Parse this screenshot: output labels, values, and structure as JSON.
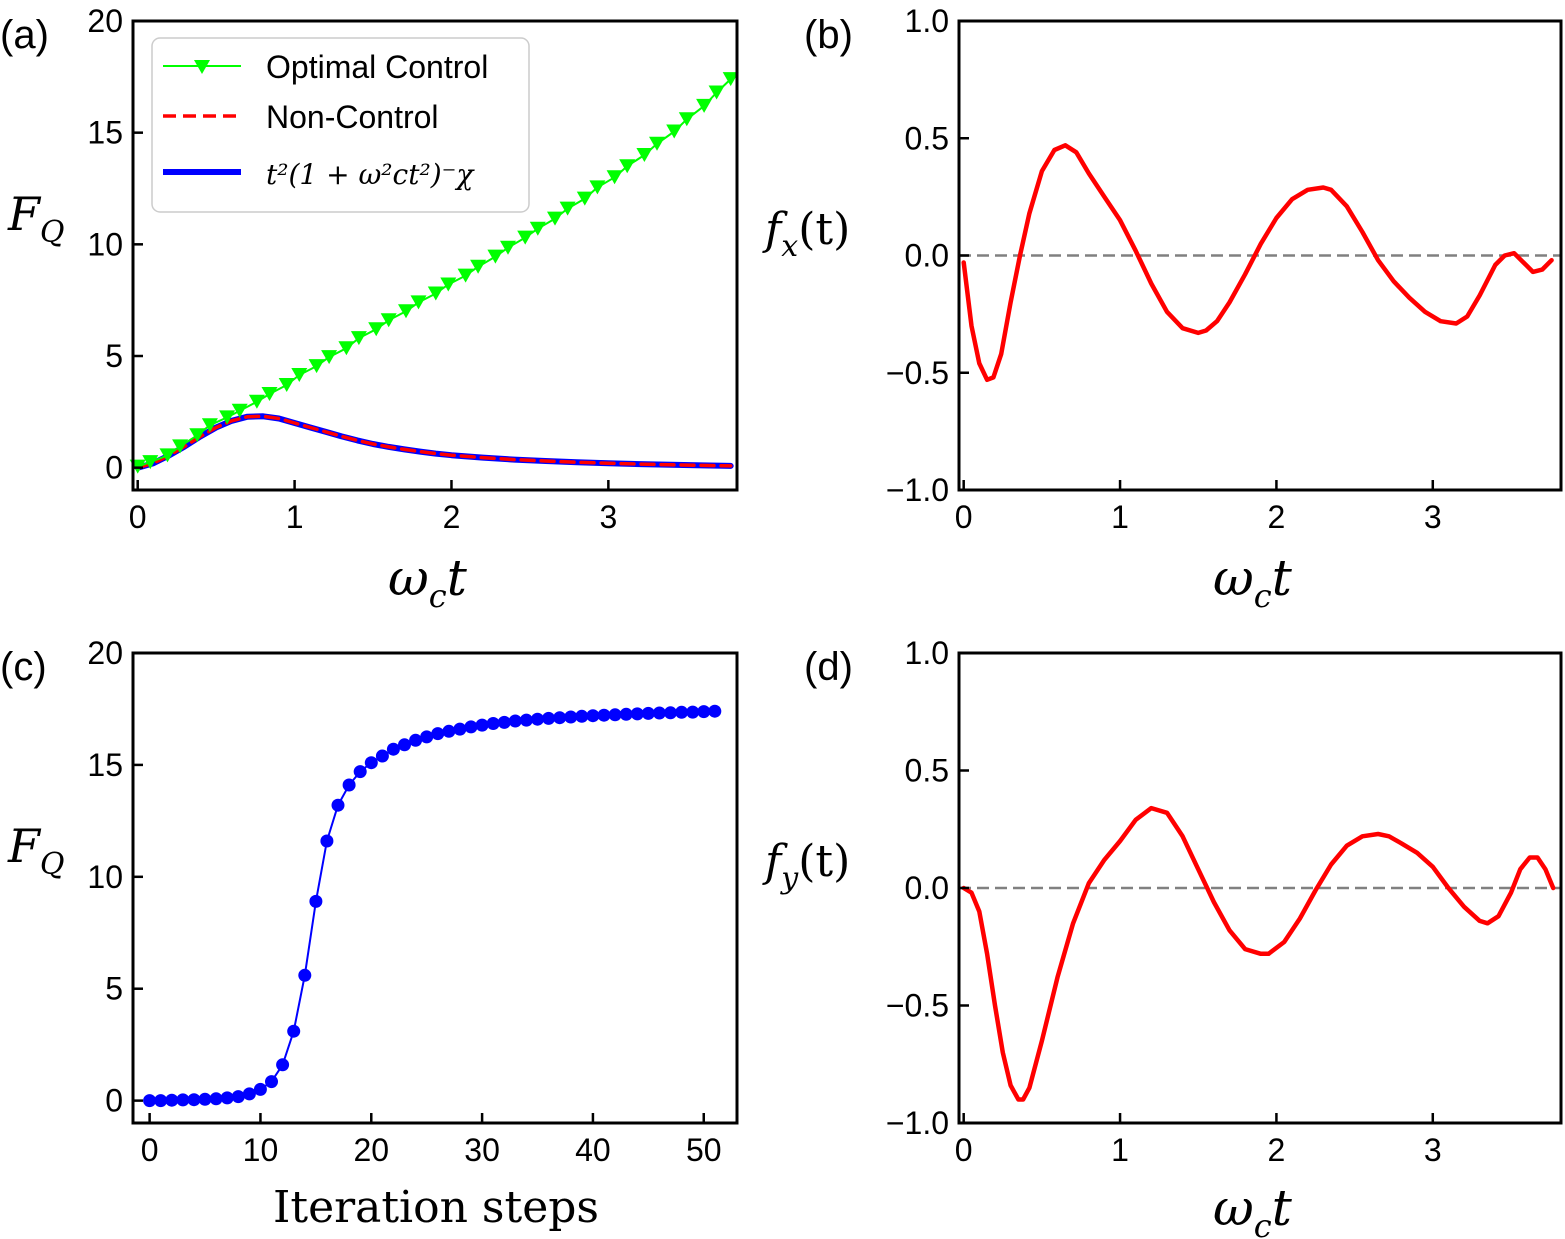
{
  "chart_data": [
    {
      "panel_label": "(a)",
      "type": "line",
      "xlabel_base": "ω",
      "xlabel_sub": "c",
      "xlabel_tail": "t",
      "ylabel_base": "F",
      "ylabel_sub": "Q",
      "xlim": [
        -0.03,
        3.82
      ],
      "ylim": [
        -1,
        20
      ],
      "xticks": [
        0,
        1,
        2,
        3
      ],
      "yticks": [
        0,
        5,
        10,
        15,
        20
      ],
      "grid": false,
      "legend": "top-left",
      "legend_entries": {
        "optimal": "Optimal Control",
        "noncontrol": "Non-Control",
        "formula": "t²(1 + ω²ct²)⁻χ"
      },
      "series": [
        {
          "name": "Optimal Control",
          "color": "#00ff00",
          "marker": "triangle-down",
          "x": [
            0.0,
            0.08,
            0.19,
            0.27,
            0.38,
            0.46,
            0.57,
            0.65,
            0.76,
            0.84,
            0.95,
            1.03,
            1.14,
            1.22,
            1.33,
            1.41,
            1.52,
            1.6,
            1.71,
            1.79,
            1.9,
            1.98,
            2.09,
            2.17,
            2.28,
            2.36,
            2.47,
            2.55,
            2.66,
            2.74,
            2.85,
            2.93,
            3.04,
            3.12,
            3.23,
            3.31,
            3.42,
            3.5,
            3.61,
            3.69,
            3.78
          ],
          "values": [
            0.05,
            0.25,
            0.55,
            0.95,
            1.45,
            1.9,
            2.25,
            2.55,
            2.95,
            3.3,
            3.7,
            4.15,
            4.55,
            4.95,
            5.35,
            5.8,
            6.2,
            6.6,
            7.0,
            7.4,
            7.8,
            8.2,
            8.6,
            9.0,
            9.45,
            9.85,
            10.3,
            10.7,
            11.15,
            11.6,
            12.05,
            12.55,
            13.0,
            13.5,
            14.0,
            14.5,
            15.05,
            15.6,
            16.2,
            16.8,
            17.4
          ]
        },
        {
          "name": "Non-Control",
          "color": "#ff0000",
          "style": "dashed",
          "x": [
            0.0,
            0.1,
            0.2,
            0.3,
            0.4,
            0.5,
            0.6,
            0.7,
            0.8,
            0.9,
            1.0,
            1.1,
            1.2,
            1.3,
            1.4,
            1.5,
            1.6,
            1.7,
            1.8,
            1.9,
            2.0,
            2.2,
            2.4,
            2.6,
            2.8,
            3.0,
            3.2,
            3.4,
            3.6,
            3.78
          ],
          "values": [
            0.0,
            0.2,
            0.55,
            0.95,
            1.4,
            1.8,
            2.1,
            2.28,
            2.3,
            2.2,
            2.0,
            1.8,
            1.6,
            1.4,
            1.22,
            1.06,
            0.93,
            0.82,
            0.72,
            0.63,
            0.56,
            0.45,
            0.36,
            0.3,
            0.24,
            0.2,
            0.16,
            0.13,
            0.1,
            0.08
          ]
        },
        {
          "name": "t²(1 + ω²ct²)⁻χ",
          "color": "#0000ff",
          "style": "solid",
          "x": [
            0.0,
            0.1,
            0.2,
            0.3,
            0.4,
            0.5,
            0.6,
            0.7,
            0.8,
            0.9,
            1.0,
            1.1,
            1.2,
            1.3,
            1.4,
            1.5,
            1.6,
            1.7,
            1.8,
            1.9,
            2.0,
            2.2,
            2.4,
            2.6,
            2.8,
            3.0,
            3.2,
            3.4,
            3.6,
            3.78
          ],
          "values": [
            0.0,
            0.2,
            0.55,
            0.95,
            1.4,
            1.8,
            2.1,
            2.28,
            2.3,
            2.2,
            2.0,
            1.8,
            1.6,
            1.4,
            1.22,
            1.06,
            0.93,
            0.82,
            0.72,
            0.63,
            0.56,
            0.45,
            0.36,
            0.3,
            0.24,
            0.2,
            0.16,
            0.13,
            0.1,
            0.08
          ]
        }
      ]
    },
    {
      "panel_label": "(b)",
      "type": "line",
      "xlabel_base": "ω",
      "xlabel_sub": "c",
      "xlabel_tail": "t",
      "ylabel_base": "f",
      "ylabel_sub": "x",
      "ylabel_tail": "(t)",
      "xlim": [
        -0.03,
        3.82
      ],
      "ylim": [
        -1.0,
        1.0
      ],
      "xticks": [
        0,
        1,
        2,
        3
      ],
      "yticks": [
        -1.0,
        -0.5,
        0.0,
        0.5,
        1.0
      ],
      "ytick_labels": [
        "−1.0",
        "−0.5",
        "0.0",
        "0.5",
        "1.0"
      ],
      "grid": false,
      "reference_line": 0.0,
      "series": [
        {
          "color": "#ff0000",
          "x": [
            0.0,
            0.05,
            0.1,
            0.15,
            0.19,
            0.24,
            0.3,
            0.36,
            0.42,
            0.5,
            0.58,
            0.65,
            0.72,
            0.8,
            0.9,
            1.0,
            1.1,
            1.2,
            1.3,
            1.4,
            1.5,
            1.55,
            1.62,
            1.7,
            1.8,
            1.9,
            2.0,
            2.1,
            2.2,
            2.3,
            2.35,
            2.45,
            2.55,
            2.65,
            2.75,
            2.85,
            2.95,
            3.05,
            3.15,
            3.22,
            3.3,
            3.4,
            3.46,
            3.52,
            3.58,
            3.64,
            3.7,
            3.76
          ],
          "values": [
            -0.03,
            -0.3,
            -0.46,
            -0.53,
            -0.52,
            -0.42,
            -0.2,
            0.0,
            0.18,
            0.36,
            0.45,
            0.47,
            0.44,
            0.35,
            0.25,
            0.15,
            0.02,
            -0.12,
            -0.24,
            -0.31,
            -0.33,
            -0.32,
            -0.28,
            -0.2,
            -0.08,
            0.05,
            0.16,
            0.24,
            0.28,
            0.29,
            0.28,
            0.21,
            0.1,
            -0.02,
            -0.11,
            -0.18,
            -0.24,
            -0.28,
            -0.29,
            -0.26,
            -0.17,
            -0.04,
            0.0,
            0.01,
            -0.03,
            -0.07,
            -0.06,
            -0.02
          ]
        }
      ]
    },
    {
      "panel_label": "(c)",
      "type": "line",
      "xlabel": "Iteration steps",
      "ylabel_base": "F",
      "ylabel_sub": "Q",
      "xlim": [
        -1.5,
        53
      ],
      "ylim": [
        -1,
        20
      ],
      "xticks": [
        0,
        10,
        20,
        30,
        40,
        50
      ],
      "yticks": [
        0,
        5,
        10,
        15,
        20
      ],
      "grid": false,
      "series": [
        {
          "color": "#0000ff",
          "marker": "circle",
          "x": [
            0,
            1,
            2,
            3,
            4,
            5,
            6,
            7,
            8,
            9,
            10,
            11,
            12,
            13,
            14,
            15,
            16,
            17,
            18,
            19,
            20,
            21,
            22,
            23,
            24,
            25,
            26,
            27,
            28,
            29,
            30,
            31,
            32,
            33,
            34,
            35,
            36,
            37,
            38,
            39,
            40,
            41,
            42,
            43,
            44,
            45,
            46,
            47,
            48,
            49,
            50,
            51
          ],
          "values": [
            0.0,
            0.0,
            0.02,
            0.03,
            0.04,
            0.06,
            0.08,
            0.12,
            0.18,
            0.3,
            0.5,
            0.85,
            1.6,
            3.1,
            5.6,
            8.9,
            11.6,
            13.2,
            14.1,
            14.7,
            15.1,
            15.4,
            15.7,
            15.9,
            16.1,
            16.25,
            16.4,
            16.5,
            16.6,
            16.7,
            16.78,
            16.85,
            16.9,
            16.96,
            17.0,
            17.04,
            17.08,
            17.11,
            17.14,
            17.17,
            17.2,
            17.22,
            17.24,
            17.26,
            17.28,
            17.3,
            17.32,
            17.33,
            17.35,
            17.36,
            17.38,
            17.4
          ]
        }
      ]
    },
    {
      "panel_label": "(d)",
      "type": "line",
      "xlabel_base": "ω",
      "xlabel_sub": "c",
      "xlabel_tail": "t",
      "ylabel_base": "f",
      "ylabel_sub": "y",
      "ylabel_tail": "(t)",
      "xlim": [
        -0.03,
        3.82
      ],
      "ylim": [
        -1.0,
        1.0
      ],
      "xticks": [
        0,
        1,
        2,
        3
      ],
      "yticks": [
        -1.0,
        -0.5,
        0.0,
        0.5,
        1.0
      ],
      "ytick_labels": [
        "−1.0",
        "−0.5",
        "0.0",
        "0.5",
        "1.0"
      ],
      "grid": false,
      "reference_line": 0.0,
      "series": [
        {
          "color": "#ff0000",
          "x": [
            0.0,
            0.05,
            0.1,
            0.15,
            0.2,
            0.25,
            0.3,
            0.35,
            0.38,
            0.42,
            0.5,
            0.6,
            0.7,
            0.8,
            0.9,
            1.0,
            1.1,
            1.2,
            1.3,
            1.4,
            1.5,
            1.6,
            1.7,
            1.8,
            1.9,
            1.95,
            2.05,
            2.15,
            2.25,
            2.35,
            2.45,
            2.55,
            2.65,
            2.72,
            2.8,
            2.9,
            3.0,
            3.1,
            3.2,
            3.3,
            3.35,
            3.42,
            3.5,
            3.56,
            3.62,
            3.67,
            3.72,
            3.77
          ],
          "values": [
            0.0,
            -0.02,
            -0.1,
            -0.28,
            -0.5,
            -0.7,
            -0.84,
            -0.9,
            -0.9,
            -0.85,
            -0.65,
            -0.38,
            -0.15,
            0.02,
            0.12,
            0.2,
            0.29,
            0.34,
            0.32,
            0.22,
            0.08,
            -0.06,
            -0.18,
            -0.26,
            -0.28,
            -0.28,
            -0.23,
            -0.13,
            -0.01,
            0.1,
            0.18,
            0.22,
            0.23,
            0.22,
            0.19,
            0.15,
            0.09,
            0.0,
            -0.08,
            -0.14,
            -0.15,
            -0.12,
            -0.02,
            0.08,
            0.13,
            0.13,
            0.08,
            0.0
          ]
        }
      ]
    }
  ]
}
